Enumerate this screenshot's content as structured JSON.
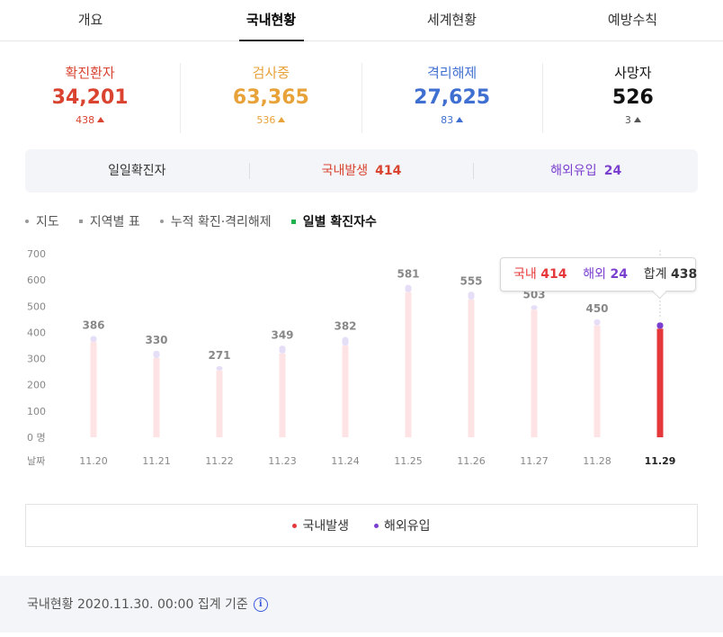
{
  "tabs": [
    "개요",
    "국내현황",
    "세계현황",
    "예방수칙"
  ],
  "stats": [
    {
      "label": "확진환자",
      "value": "34,201",
      "change": "438",
      "color": "#d9432f",
      "change_color": "#d9432f"
    },
    {
      "label": "검사중",
      "value": "63,365",
      "change": "536",
      "color": "#e8a23a",
      "change_color": "#e8a23a"
    },
    {
      "label": "격리해제",
      "value": "27,625",
      "change": "83",
      "color": "#3f6fd1",
      "change_color": "#3f6fd1"
    },
    {
      "label": "사망자",
      "value": "526",
      "change": "3",
      "color": "#111111",
      "change_color": "#555555"
    }
  ],
  "daily": {
    "label": "일일확진자",
    "domestic_label": "국내발생",
    "domestic_value": "414",
    "overseas_label": "해외유입",
    "overseas_value": "24"
  },
  "subtabs": [
    "지도",
    "지역별 표",
    "누적 확진·격리해제",
    "일별 확진자수"
  ],
  "tooltip": {
    "domestic_label": "국내",
    "domestic_value": "414",
    "overseas_label": "해외",
    "overseas_value": "24",
    "total_label": "합계",
    "total_value": "438"
  },
  "legend": {
    "domestic": "국내발생",
    "overseas": "해외유입"
  },
  "footer": {
    "text": "국내현황 2020.11.30. 00:00 집계 기준"
  },
  "colors": {
    "domestic": "#e5383b",
    "overseas": "#7b3fd0",
    "domestic_faded": "#fde3e3",
    "overseas_faded": "#e6ddf7"
  },
  "chart_data": {
    "type": "bar",
    "stacked": true,
    "categories": [
      "11.20",
      "11.21",
      "11.22",
      "11.23",
      "11.24",
      "11.25",
      "11.26",
      "11.27",
      "11.28",
      "11.29"
    ],
    "series": [
      {
        "name": "국내발생",
        "values": [
          363,
          302,
          255,
          320,
          349,
          553,
          525,
          486,
          427,
          414
        ]
      },
      {
        "name": "해외유입",
        "values": [
          23,
          28,
          16,
          29,
          33,
          28,
          30,
          17,
          23,
          24
        ]
      }
    ],
    "totals": [
      386,
      330,
      271,
      349,
      382,
      581,
      555,
      503,
      450,
      438
    ],
    "xlabel": "날짜",
    "y_unit": "명",
    "ylim": [
      0,
      700
    ],
    "yticks": [
      0,
      100,
      200,
      300,
      400,
      500,
      600,
      700
    ],
    "highlight_index": 9,
    "grid": false
  }
}
